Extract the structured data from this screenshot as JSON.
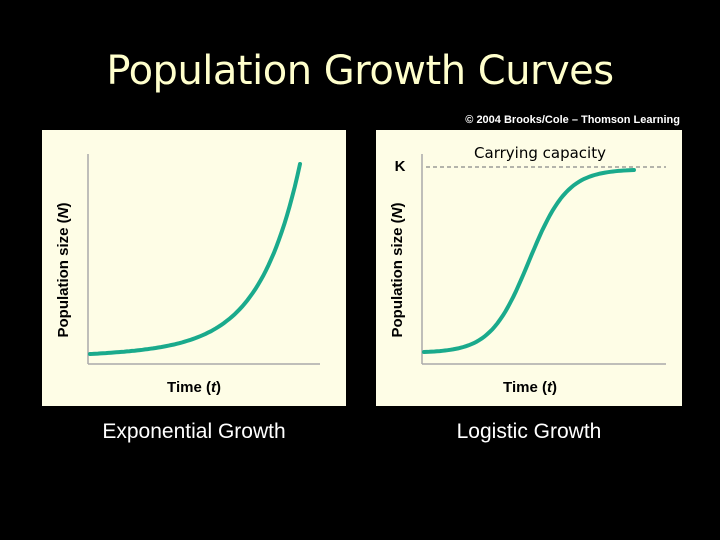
{
  "slide": {
    "title": "Population Growth Curves",
    "copyright": "© 2004 Brooks/Cole – Thomson Learning"
  },
  "colors": {
    "background": "#000000",
    "title": "#ffffcc",
    "panel": "#fefde6",
    "curve": "#1aaa8c",
    "axis": "#aaaaaa",
    "dashed": "#888888"
  },
  "panels": {
    "exponential": {
      "y_label_prefix": "Population size (",
      "y_label_var": "N",
      "y_label_suffix": ")",
      "x_label_prefix": "Time (",
      "x_label_var": "t",
      "x_label_suffix": ")",
      "caption": "Exponential Growth",
      "curve_type": "exponential"
    },
    "logistic": {
      "y_label_prefix": "Population size (",
      "y_label_var": "N",
      "y_label_suffix": ")",
      "x_label_prefix": "Time (",
      "x_label_var": "t",
      "x_label_suffix": ")",
      "k_label": "K",
      "capacity_label": "Carrying capacity",
      "caption": "Logistic Growth",
      "curve_type": "logistic"
    }
  }
}
